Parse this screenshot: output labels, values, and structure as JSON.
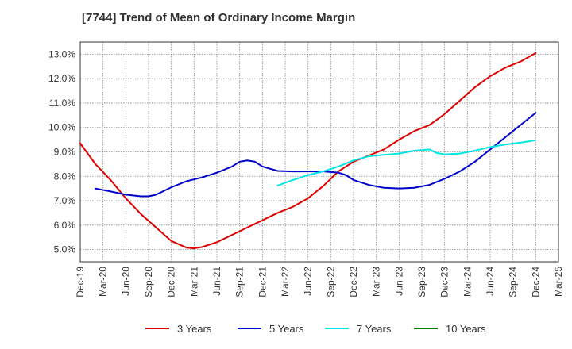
{
  "chart_data": {
    "type": "line",
    "title": "[7744]  Trend of Mean of Ordinary Income Margin",
    "xlabel": "",
    "ylabel": "",
    "ylim": [
      4.5,
      13.5
    ],
    "y_ticks": [
      "5.0%",
      "6.0%",
      "7.0%",
      "8.0%",
      "9.0%",
      "10.0%",
      "11.0%",
      "12.0%",
      "13.0%"
    ],
    "y_tick_values": [
      5,
      6,
      7,
      8,
      9,
      10,
      11,
      12,
      13
    ],
    "x_ticks": [
      "Dec-19",
      "Mar-20",
      "Jun-20",
      "Sep-20",
      "Dec-20",
      "Mar-21",
      "Jun-21",
      "Sep-21",
      "Dec-21",
      "Mar-22",
      "Jun-22",
      "Sep-22",
      "Dec-22",
      "Mar-23",
      "Jun-23",
      "Sep-23",
      "Dec-23",
      "Mar-24",
      "Jun-24",
      "Sep-24",
      "Dec-24",
      "Mar-25"
    ],
    "grid": true,
    "legend_position": "bottom",
    "series": [
      {
        "name": "3 Years",
        "color": "#dd0000",
        "points": [
          [
            "Dec-19",
            9.35
          ],
          [
            "Feb-20",
            8.5
          ],
          [
            "Apr-20",
            7.85
          ],
          [
            "Jun-20",
            7.1
          ],
          [
            "Aug-20",
            6.45
          ],
          [
            "Oct-20",
            5.9
          ],
          [
            "Dec-20",
            5.35
          ],
          [
            "Feb-21",
            5.08
          ],
          [
            "Mar-21",
            5.05
          ],
          [
            "Apr-21",
            5.1
          ],
          [
            "Jun-21",
            5.3
          ],
          [
            "Aug-21",
            5.6
          ],
          [
            "Oct-21",
            5.9
          ],
          [
            "Dec-21",
            6.2
          ],
          [
            "Feb-22",
            6.5
          ],
          [
            "Apr-22",
            6.75
          ],
          [
            "Jun-22",
            7.1
          ],
          [
            "Aug-22",
            7.6
          ],
          [
            "Oct-22",
            8.2
          ],
          [
            "Dec-22",
            8.6
          ],
          [
            "Feb-23",
            8.85
          ],
          [
            "Apr-23",
            9.1
          ],
          [
            "Jun-23",
            9.5
          ],
          [
            "Aug-23",
            9.85
          ],
          [
            "Oct-23",
            10.1
          ],
          [
            "Dec-23",
            10.55
          ],
          [
            "Feb-24",
            11.1
          ],
          [
            "Apr-24",
            11.65
          ],
          [
            "Jun-24",
            12.1
          ],
          [
            "Aug-24",
            12.45
          ],
          [
            "Oct-24",
            12.7
          ],
          [
            "Dec-24",
            13.05
          ]
        ]
      },
      {
        "name": "5 Years",
        "color": "#0000cc",
        "points": [
          [
            "Feb-20",
            7.5
          ],
          [
            "Apr-20",
            7.38
          ],
          [
            "Jun-20",
            7.25
          ],
          [
            "Aug-20",
            7.18
          ],
          [
            "Sep-20",
            7.18
          ],
          [
            "Oct-20",
            7.25
          ],
          [
            "Dec-20",
            7.55
          ],
          [
            "Feb-21",
            7.8
          ],
          [
            "Apr-21",
            7.95
          ],
          [
            "Jun-21",
            8.15
          ],
          [
            "Aug-21",
            8.4
          ],
          [
            "Sep-21",
            8.6
          ],
          [
            "Oct-21",
            8.65
          ],
          [
            "Nov-21",
            8.6
          ],
          [
            "Dec-21",
            8.4
          ],
          [
            "Feb-22",
            8.22
          ],
          [
            "Apr-22",
            8.2
          ],
          [
            "Jun-22",
            8.2
          ],
          [
            "Aug-22",
            8.2
          ],
          [
            "Oct-22",
            8.15
          ],
          [
            "Nov-22",
            8.05
          ],
          [
            "Dec-22",
            7.85
          ],
          [
            "Feb-23",
            7.65
          ],
          [
            "Apr-23",
            7.53
          ],
          [
            "Jun-23",
            7.5
          ],
          [
            "Aug-23",
            7.53
          ],
          [
            "Oct-23",
            7.65
          ],
          [
            "Dec-23",
            7.9
          ],
          [
            "Feb-24",
            8.2
          ],
          [
            "Apr-24",
            8.6
          ],
          [
            "Jun-24",
            9.1
          ],
          [
            "Aug-24",
            9.6
          ],
          [
            "Oct-24",
            10.1
          ],
          [
            "Dec-24",
            10.6
          ]
        ]
      },
      {
        "name": "7 Years",
        "color": "#00e5e5",
        "points": [
          [
            "Feb-22",
            7.62
          ],
          [
            "Apr-22",
            7.85
          ],
          [
            "Jun-22",
            8.05
          ],
          [
            "Aug-22",
            8.2
          ],
          [
            "Oct-22",
            8.4
          ],
          [
            "Dec-22",
            8.65
          ],
          [
            "Feb-23",
            8.82
          ],
          [
            "Apr-23",
            8.88
          ],
          [
            "Jun-23",
            8.93
          ],
          [
            "Aug-23",
            9.05
          ],
          [
            "Oct-23",
            9.1
          ],
          [
            "Nov-23",
            8.95
          ],
          [
            "Dec-23",
            8.9
          ],
          [
            "Feb-24",
            8.93
          ],
          [
            "Apr-24",
            9.05
          ],
          [
            "Jun-24",
            9.2
          ],
          [
            "Aug-24",
            9.3
          ],
          [
            "Oct-24",
            9.38
          ],
          [
            "Dec-24",
            9.48
          ]
        ]
      },
      {
        "name": "10 Years",
        "color": "#008000",
        "points": []
      }
    ]
  }
}
